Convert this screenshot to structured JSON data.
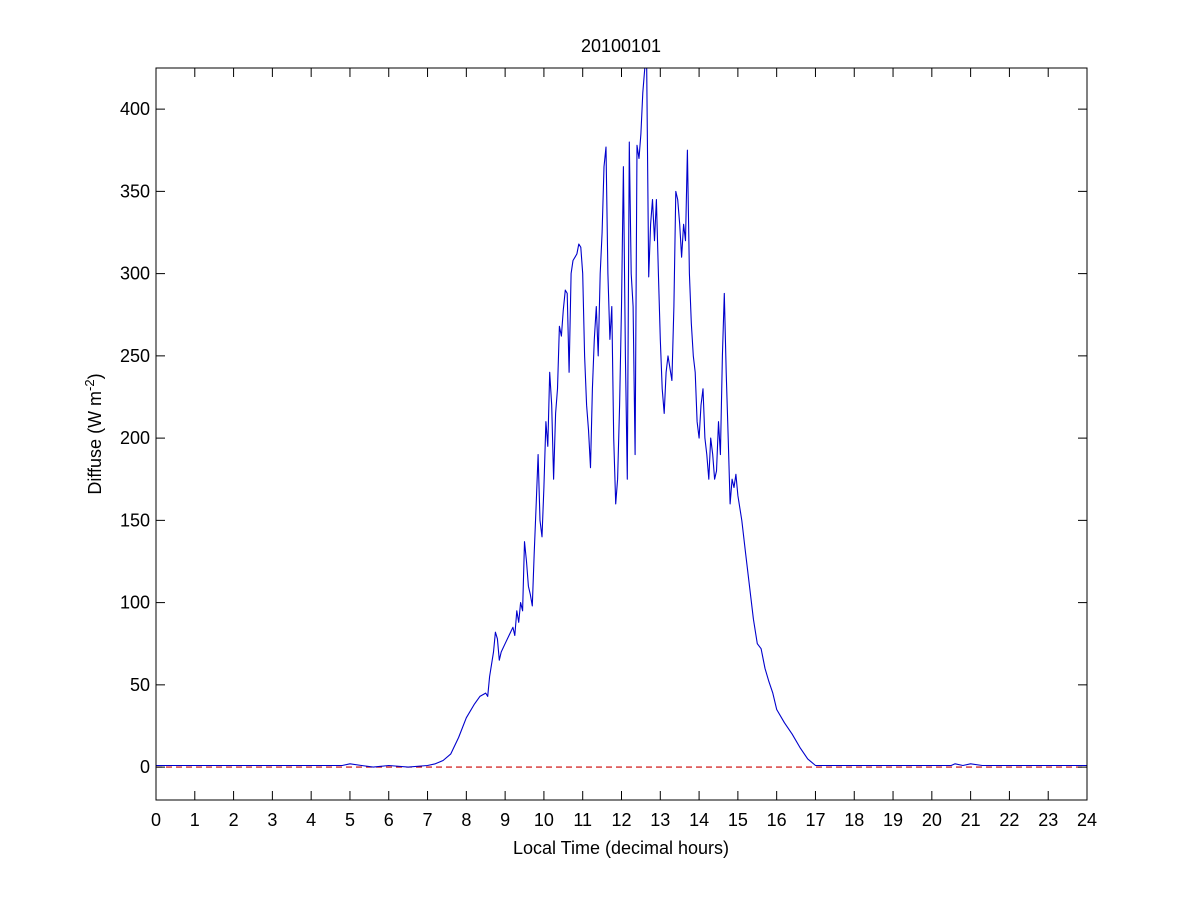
{
  "chart_data": {
    "type": "line",
    "title": "20100101",
    "xlabel": "Local Time (decimal hours)",
    "ylabel": {
      "base": "Diffuse (W m",
      "superscript": "-2",
      "suffix": ")"
    },
    "xlim": [
      0,
      24
    ],
    "ylim": [
      -20,
      425
    ],
    "x_ticks": [
      "0",
      "1",
      "2",
      "3",
      "4",
      "5",
      "6",
      "7",
      "8",
      "9",
      "10",
      "11",
      "12",
      "13",
      "14",
      "15",
      "16",
      "17",
      "18",
      "19",
      "20",
      "21",
      "22",
      "23",
      "24"
    ],
    "y_ticks": [
      "0",
      "50",
      "100",
      "150",
      "200",
      "250",
      "300",
      "350",
      "400"
    ],
    "y_tick_values": [
      0,
      50,
      100,
      150,
      200,
      250,
      300,
      350,
      400
    ],
    "grid": false,
    "legend": "none",
    "colors": {
      "series": "#0000cc",
      "reference": "#cc0000",
      "axes": "#000000",
      "background": "#ffffff"
    },
    "series": [
      {
        "style": "solid",
        "color": "#0000cc",
        "points": [
          [
            0,
            1
          ],
          [
            1,
            1
          ],
          [
            2,
            1
          ],
          [
            3,
            1
          ],
          [
            4,
            1
          ],
          [
            4.8,
            1
          ],
          [
            5,
            2
          ],
          [
            5.3,
            1
          ],
          [
            5.6,
            0
          ],
          [
            6,
            1
          ],
          [
            6.5,
            0
          ],
          [
            7,
            1
          ],
          [
            7.2,
            2
          ],
          [
            7.4,
            4
          ],
          [
            7.6,
            8
          ],
          [
            7.8,
            18
          ],
          [
            8.0,
            30
          ],
          [
            8.2,
            38
          ],
          [
            8.35,
            43
          ],
          [
            8.5,
            45
          ],
          [
            8.55,
            43
          ],
          [
            8.6,
            55
          ],
          [
            8.7,
            70
          ],
          [
            8.75,
            82
          ],
          [
            8.8,
            78
          ],
          [
            8.85,
            65
          ],
          [
            8.9,
            70
          ],
          [
            9.0,
            75
          ],
          [
            9.1,
            80
          ],
          [
            9.2,
            85
          ],
          [
            9.25,
            80
          ],
          [
            9.3,
            95
          ],
          [
            9.35,
            88
          ],
          [
            9.4,
            100
          ],
          [
            9.45,
            95
          ],
          [
            9.5,
            137
          ],
          [
            9.55,
            125
          ],
          [
            9.6,
            110
          ],
          [
            9.65,
            105
          ],
          [
            9.7,
            98
          ],
          [
            9.75,
            130
          ],
          [
            9.8,
            160
          ],
          [
            9.85,
            190
          ],
          [
            9.9,
            150
          ],
          [
            9.95,
            140
          ],
          [
            10.0,
            170
          ],
          [
            10.05,
            210
          ],
          [
            10.1,
            195
          ],
          [
            10.15,
            240
          ],
          [
            10.2,
            220
          ],
          [
            10.25,
            175
          ],
          [
            10.3,
            215
          ],
          [
            10.35,
            230
          ],
          [
            10.4,
            268
          ],
          [
            10.45,
            262
          ],
          [
            10.5,
            278
          ],
          [
            10.55,
            290
          ],
          [
            10.6,
            288
          ],
          [
            10.65,
            240
          ],
          [
            10.7,
            300
          ],
          [
            10.75,
            308
          ],
          [
            10.8,
            310
          ],
          [
            10.85,
            312
          ],
          [
            10.9,
            318
          ],
          [
            10.95,
            316
          ],
          [
            11.0,
            300
          ],
          [
            11.05,
            250
          ],
          [
            11.1,
            220
          ],
          [
            11.15,
            205
          ],
          [
            11.2,
            182
          ],
          [
            11.25,
            230
          ],
          [
            11.3,
            260
          ],
          [
            11.35,
            280
          ],
          [
            11.4,
            250
          ],
          [
            11.45,
            300
          ],
          [
            11.5,
            325
          ],
          [
            11.55,
            365
          ],
          [
            11.6,
            377
          ],
          [
            11.65,
            300
          ],
          [
            11.7,
            260
          ],
          [
            11.75,
            280
          ],
          [
            11.8,
            200
          ],
          [
            11.85,
            160
          ],
          [
            11.9,
            175
          ],
          [
            11.95,
            220
          ],
          [
            12.0,
            280
          ],
          [
            12.05,
            365
          ],
          [
            12.1,
            250
          ],
          [
            12.15,
            175
          ],
          [
            12.2,
            380
          ],
          [
            12.25,
            300
          ],
          [
            12.3,
            280
          ],
          [
            12.35,
            190
          ],
          [
            12.4,
            378
          ],
          [
            12.45,
            370
          ],
          [
            12.5,
            385
          ],
          [
            12.55,
            410
          ],
          [
            12.6,
            425
          ],
          [
            12.65,
            425
          ],
          [
            12.7,
            298
          ],
          [
            12.75,
            330
          ],
          [
            12.8,
            345
          ],
          [
            12.85,
            320
          ],
          [
            12.9,
            345
          ],
          [
            12.95,
            300
          ],
          [
            13.0,
            260
          ],
          [
            13.05,
            230
          ],
          [
            13.1,
            215
          ],
          [
            13.15,
            240
          ],
          [
            13.2,
            250
          ],
          [
            13.3,
            235
          ],
          [
            13.35,
            280
          ],
          [
            13.4,
            350
          ],
          [
            13.45,
            345
          ],
          [
            13.5,
            330
          ],
          [
            13.55,
            310
          ],
          [
            13.6,
            330
          ],
          [
            13.65,
            320
          ],
          [
            13.7,
            375
          ],
          [
            13.75,
            300
          ],
          [
            13.8,
            270
          ],
          [
            13.85,
            250
          ],
          [
            13.9,
            240
          ],
          [
            13.95,
            210
          ],
          [
            14.0,
            200
          ],
          [
            14.05,
            220
          ],
          [
            14.1,
            230
          ],
          [
            14.15,
            200
          ],
          [
            14.2,
            190
          ],
          [
            14.25,
            175
          ],
          [
            14.3,
            200
          ],
          [
            14.35,
            190
          ],
          [
            14.4,
            175
          ],
          [
            14.45,
            180
          ],
          [
            14.5,
            210
          ],
          [
            14.55,
            190
          ],
          [
            14.6,
            250
          ],
          [
            14.65,
            288
          ],
          [
            14.7,
            240
          ],
          [
            14.75,
            200
          ],
          [
            14.8,
            160
          ],
          [
            14.85,
            175
          ],
          [
            14.9,
            170
          ],
          [
            14.95,
            178
          ],
          [
            15.0,
            165
          ],
          [
            15.1,
            150
          ],
          [
            15.2,
            130
          ],
          [
            15.3,
            110
          ],
          [
            15.4,
            90
          ],
          [
            15.5,
            75
          ],
          [
            15.6,
            72
          ],
          [
            15.7,
            60
          ],
          [
            15.8,
            52
          ],
          [
            15.9,
            45
          ],
          [
            16.0,
            35
          ],
          [
            16.2,
            27
          ],
          [
            16.4,
            20
          ],
          [
            16.6,
            12
          ],
          [
            16.8,
            5
          ],
          [
            17.0,
            1
          ],
          [
            17.5,
            1
          ],
          [
            18,
            1
          ],
          [
            19,
            1
          ],
          [
            20,
            1
          ],
          [
            20.5,
            1
          ],
          [
            20.6,
            2
          ],
          [
            20.8,
            1
          ],
          [
            21,
            2
          ],
          [
            21.3,
            1
          ],
          [
            22,
            1
          ],
          [
            23,
            1
          ],
          [
            24,
            1
          ]
        ]
      },
      {
        "style": "dashed",
        "color": "#cc0000",
        "points": [
          [
            0,
            0
          ],
          [
            24,
            0
          ]
        ]
      }
    ]
  }
}
